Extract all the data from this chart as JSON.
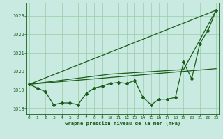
{
  "title": "Graphe pression niveau de la mer (hPa)",
  "background_color": "#c8eae0",
  "plot_bg_color": "#c8eae0",
  "grid_color": "#99ccaa",
  "line_color": "#1a5c1a",
  "text_color": "#1a5c1a",
  "xlabel_color": "#1a5c1a",
  "hours": [
    0,
    1,
    2,
    3,
    4,
    5,
    6,
    7,
    8,
    9,
    10,
    11,
    12,
    13,
    14,
    15,
    16,
    17,
    18,
    19,
    20,
    21,
    22,
    23
  ],
  "pressure": [
    1019.3,
    1019.1,
    1018.9,
    1018.2,
    1018.3,
    1018.3,
    1018.2,
    1018.8,
    1019.1,
    1019.2,
    1019.35,
    1019.4,
    1019.35,
    1019.5,
    1018.6,
    1018.2,
    1018.5,
    1018.5,
    1018.6,
    1020.5,
    1019.6,
    1021.5,
    1022.2,
    1023.3
  ],
  "trend1_x": [
    0,
    23
  ],
  "trend1_y": [
    1019.3,
    1023.3
  ],
  "trend2_x": [
    0,
    23
  ],
  "trend2_y": [
    1019.3,
    1020.15
  ],
  "trend3_x": [
    0,
    10,
    19,
    23
  ],
  "trend3_y": [
    1019.3,
    1019.85,
    1020.1,
    1023.3
  ],
  "ylim": [
    1017.7,
    1023.7
  ],
  "xlim": [
    -0.3,
    23.3
  ],
  "yticks": [
    1018,
    1019,
    1020,
    1021,
    1022,
    1023
  ],
  "xticks": [
    0,
    1,
    2,
    3,
    4,
    5,
    6,
    7,
    8,
    9,
    10,
    11,
    12,
    13,
    14,
    15,
    16,
    17,
    18,
    19,
    20,
    21,
    22,
    23
  ]
}
